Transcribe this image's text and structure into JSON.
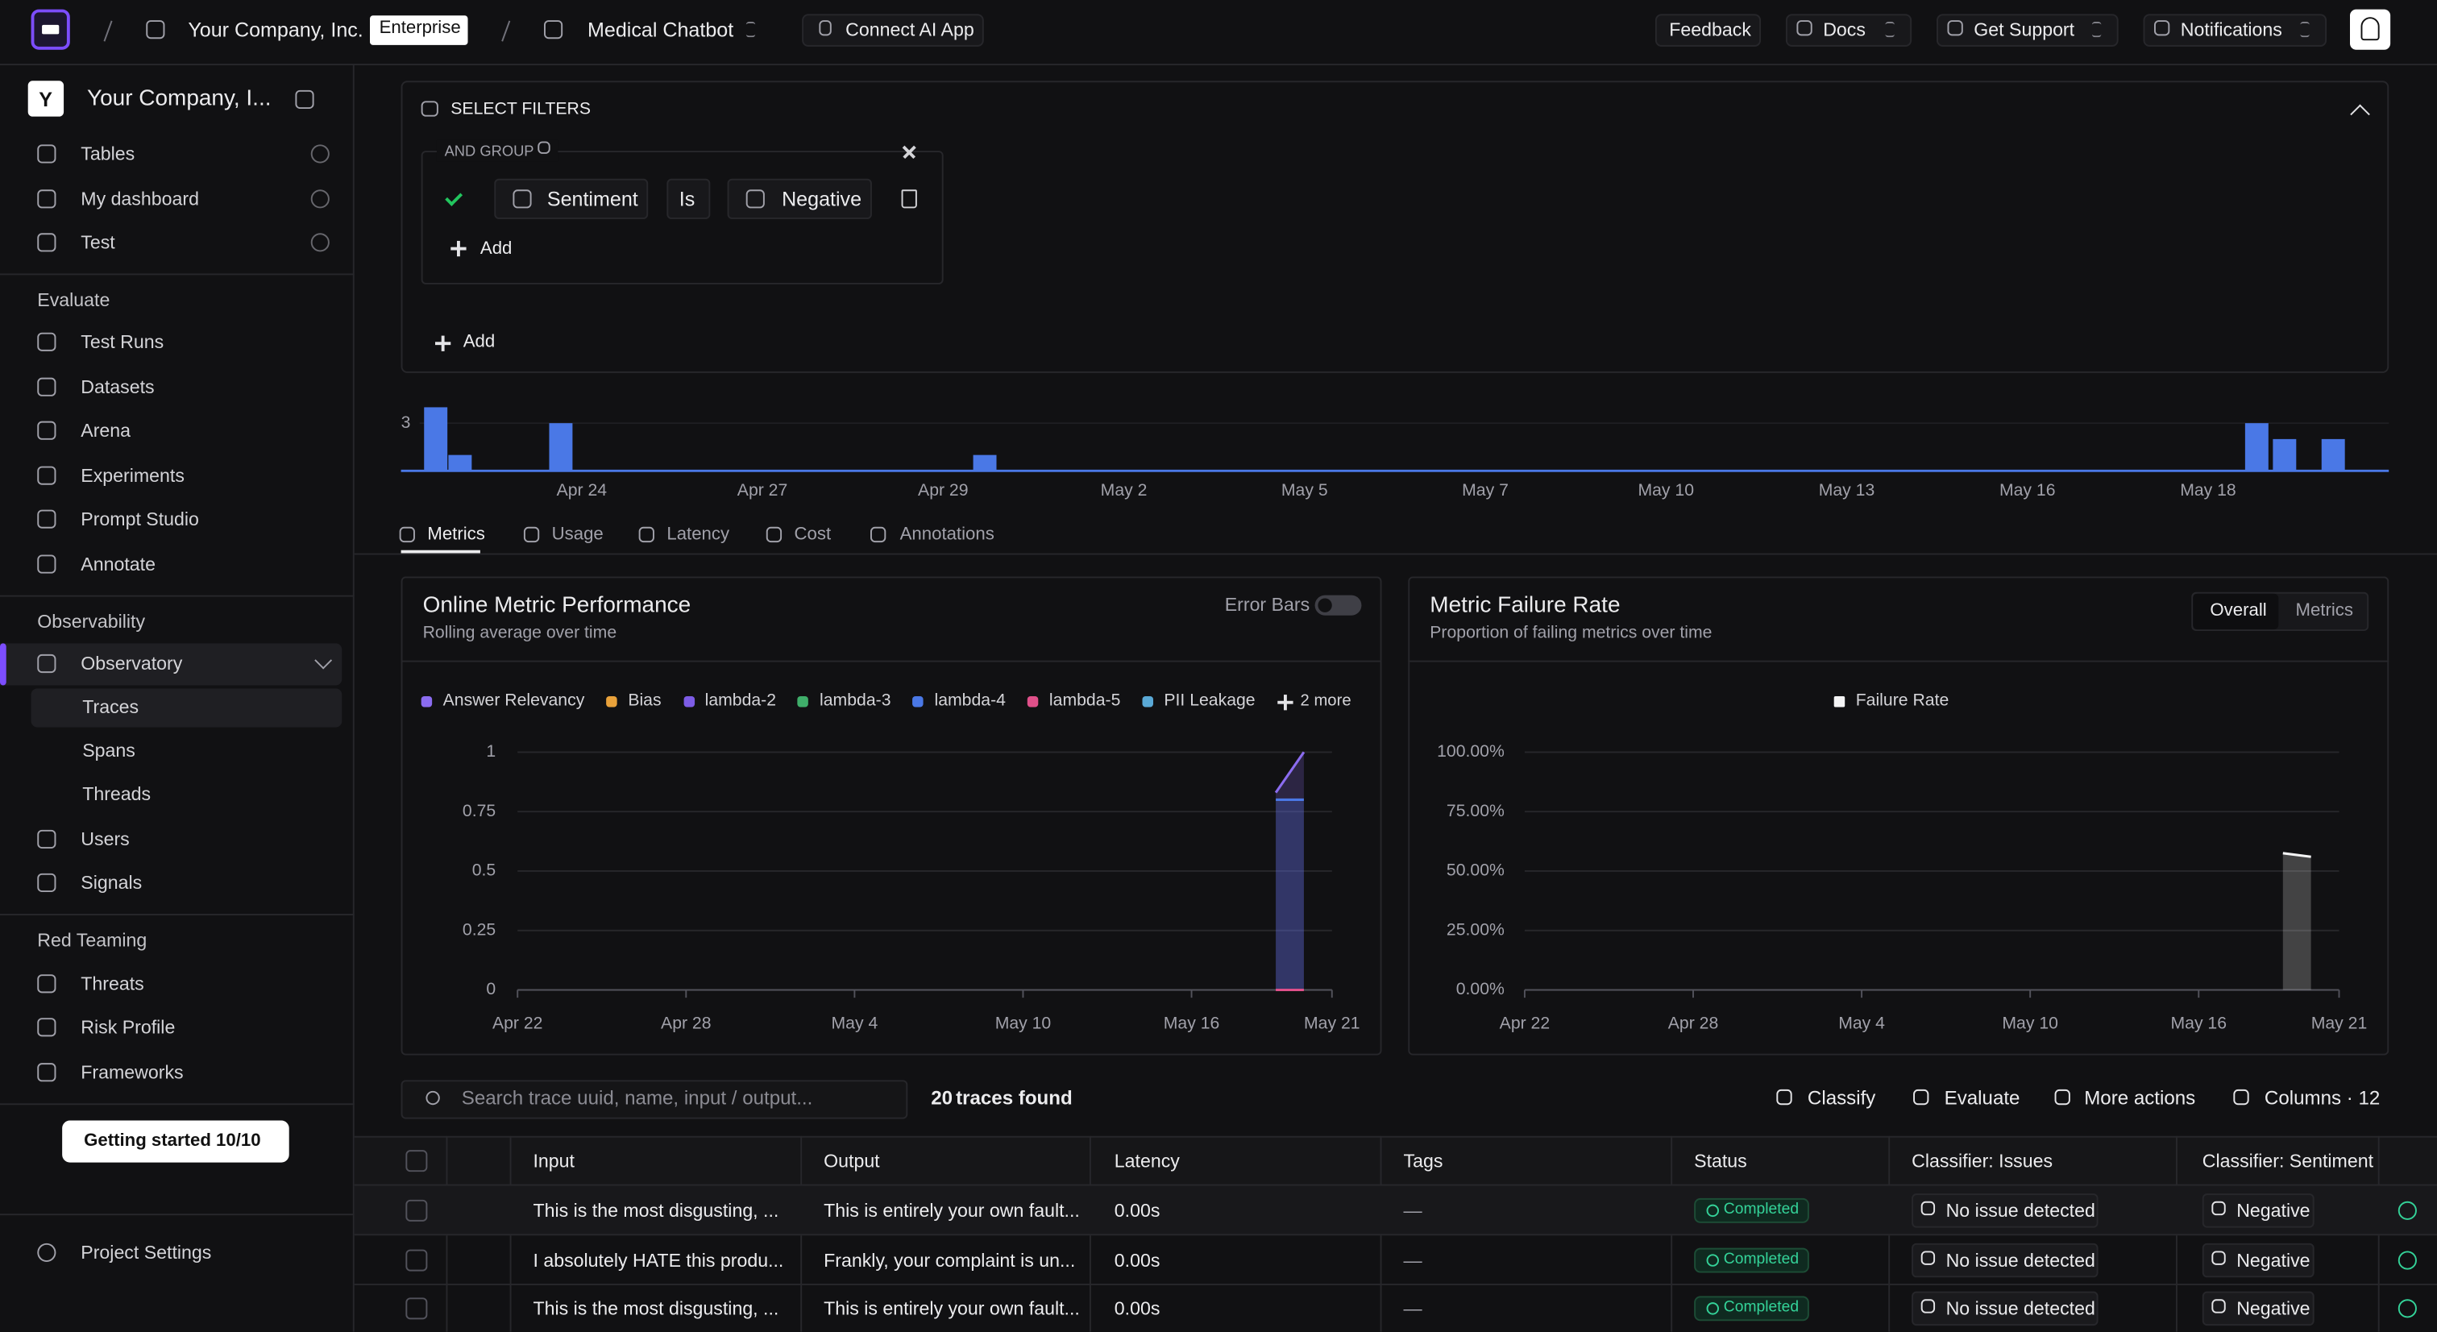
{
  "topbar": {
    "organization": "Your Company, Inc.",
    "plan": "Enterprise",
    "project": "Medical Chatbot",
    "connect": "Connect AI App",
    "actions": [
      "Feedback",
      "Docs",
      "Get Support",
      "Notifications"
    ]
  },
  "sidebar": {
    "workspace_initial": "Y",
    "workspace": "Your Company, I...",
    "pinned": [
      "Tables",
      "My dashboard",
      "Test"
    ],
    "evaluate": {
      "title": "Evaluate",
      "items": [
        "Test Runs",
        "Datasets",
        "Arena",
        "Experiments",
        "Prompt Studio",
        "Annotate"
      ]
    },
    "observability": {
      "title": "Observability",
      "item": "Observatory",
      "subitems": [
        "Traces",
        "Spans",
        "Threads"
      ],
      "more": [
        "Users",
        "Signals"
      ]
    },
    "red_teaming": {
      "title": "Red Teaming",
      "items": [
        "Threats",
        "Risk Profile",
        "Frameworks"
      ]
    },
    "getting_started": "Getting started 10/10",
    "settings": "Project Settings"
  },
  "filters": {
    "title": "SELECT FILTERS",
    "group": "AND GROUP",
    "field": "Sentiment",
    "operator": "Is",
    "value": "Negative",
    "add_condition": "Add",
    "add_group": "Add"
  },
  "activity_chart": {
    "type": "bar",
    "color": "#4a78e6",
    "x": [
      111.9,
      112.25,
      113.7,
      119.8,
      138.1,
      138.5,
      139.2
    ],
    "values": [
      4,
      1,
      3,
      1,
      3,
      2,
      2
    ],
    "xlim": [
      111.4,
      140
    ],
    "ylim": [
      0,
      4.3
    ],
    "yticks": [
      3
    ],
    "xticks": [
      {
        "value": 114,
        "label": "Apr 24"
      },
      {
        "value": 116.6,
        "label": "Apr 27"
      },
      {
        "value": 119.2,
        "label": "Apr 29"
      },
      {
        "value": 121.8,
        "label": "May 2"
      },
      {
        "value": 124.4,
        "label": "May 5"
      },
      {
        "value": 127,
        "label": "May 7"
      },
      {
        "value": 129.6,
        "label": "May 10"
      },
      {
        "value": 132.2,
        "label": "May 13"
      },
      {
        "value": 134.8,
        "label": "May 16"
      },
      {
        "value": 137.4,
        "label": "May 18"
      }
    ]
  },
  "tabs": [
    "Metrics",
    "Usage",
    "Latency",
    "Cost",
    "Annotations"
  ],
  "charts": [
    {
      "type": "area",
      "title": "Online Metric Performance",
      "subtitle": "Rolling average over time",
      "toggle": "Error Bars",
      "legend_more": "2 more",
      "x": [
        139,
        140
      ],
      "xlim": [
        112,
        141
      ],
      "ylim": [
        0,
        1
      ],
      "grid": true,
      "xticks": [
        {
          "value": 112,
          "label": "Apr 22"
        },
        {
          "value": 118,
          "label": "Apr 28"
        },
        {
          "value": 124,
          "label": "May 4"
        },
        {
          "value": 130,
          "label": "May 10"
        },
        {
          "value": 136,
          "label": "May 16"
        },
        {
          "value": 141,
          "label": "May 21"
        }
      ],
      "yticks": [
        0,
        0.25,
        0.5,
        0.75,
        1
      ],
      "series": [
        {
          "name": "Answer Relevancy",
          "color": "#8b6cf0",
          "values": [
            0.83,
            1
          ]
        },
        {
          "name": "Bias",
          "color": "#e9a23b",
          "values": [
            null,
            null
          ]
        },
        {
          "name": "lambda-2",
          "color": "#7d5ce6",
          "values": [
            null,
            null
          ]
        },
        {
          "name": "lambda-3",
          "color": "#3fae6a",
          "values": [
            null,
            null
          ]
        },
        {
          "name": "lambda-4",
          "color": "#4a78e6",
          "values": [
            0.8,
            0.8
          ]
        },
        {
          "name": "lambda-5",
          "color": "#e0508a",
          "values": [
            0,
            0
          ]
        },
        {
          "name": "PII Leakage",
          "color": "#5aa9d6",
          "values": [
            null,
            null
          ]
        }
      ]
    },
    {
      "type": "area",
      "title": "Metric Failure Rate",
      "subtitle": "Proportion of failing metrics over time",
      "segments": [
        "Overall",
        "Metrics"
      ],
      "x": [
        139,
        140
      ],
      "xlim": [
        112,
        141
      ],
      "ylim": [
        0,
        100
      ],
      "grid": true,
      "xticks": [
        {
          "value": 112,
          "label": "Apr 22"
        },
        {
          "value": 118,
          "label": "Apr 28"
        },
        {
          "value": 124,
          "label": "May 4"
        },
        {
          "value": 130,
          "label": "May 10"
        },
        {
          "value": 136,
          "label": "May 16"
        },
        {
          "value": 141,
          "label": "May 21"
        }
      ],
      "yticks": [
        {
          "value": 0,
          "label": "0.00%"
        },
        {
          "value": 25,
          "label": "25.00%"
        },
        {
          "value": 50,
          "label": "50.00%"
        },
        {
          "value": 75,
          "label": "75.00%"
        },
        {
          "value": 100,
          "label": "100.00%"
        }
      ],
      "series": [
        {
          "name": "Failure Rate",
          "color": "#f4f4f5",
          "values": [
            57.5,
            56
          ]
        }
      ]
    }
  ],
  "toolbar": {
    "search_placeholder": "Search trace uuid, name, input / output...",
    "count": 20,
    "count_label": "traces found",
    "actions": [
      "Classify",
      "Evaluate",
      "More actions",
      "Columns · 12"
    ]
  },
  "table": {
    "columns": [
      "Input",
      "Output",
      "Latency",
      "Tags",
      "Status",
      "Classifier: Issues",
      "Classifier: Sentiment"
    ],
    "rows": [
      [
        "This is the most disgusting, ...",
        "This is entirely your own fault...",
        "0.00s",
        "—",
        "Completed",
        "No issue detected",
        "Negative"
      ],
      [
        "I absolutely HATE this produ...",
        "Frankly, your complaint is un...",
        "0.00s",
        "—",
        "Completed",
        "No issue detected",
        "Negative"
      ],
      [
        "This is the most disgusting, ...",
        "This is entirely your own fault...",
        "0.00s",
        "—",
        "Completed",
        "No issue detected",
        "Negative"
      ]
    ]
  }
}
